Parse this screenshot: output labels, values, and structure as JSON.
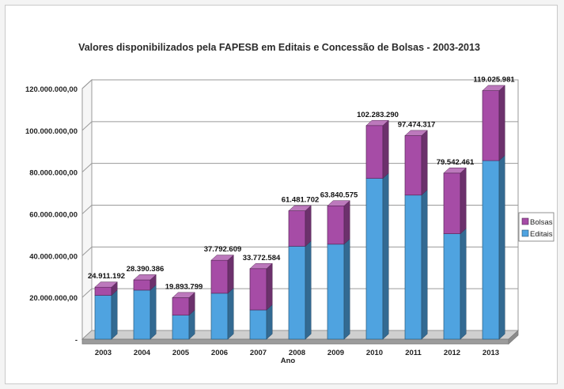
{
  "chart_data": {
    "type": "bar",
    "stacked": true,
    "view": "3d",
    "title": "Valores disponibilizados pela FAPESB em Editais e Concessão de Bolsas - 2003-2013",
    "xlabel": "Ano",
    "ylabel": "",
    "ylim": [
      0,
      120000000
    ],
    "yticks": [
      0,
      20000000,
      40000000,
      60000000,
      80000000,
      100000000,
      120000000
    ],
    "ytick_labels": [
      "-",
      "20.000.000,00",
      "40.000.000,00",
      "60.000.000,00",
      "80.000.000,00",
      "100.000.000,00",
      "120.000.000,00"
    ],
    "grid": true,
    "legend_position": "right",
    "categories": [
      "2003",
      "2004",
      "2005",
      "2006",
      "2007",
      "2008",
      "2009",
      "2010",
      "2011",
      "2012",
      "2013"
    ],
    "totals": [
      24911192,
      28390386,
      19893799,
      37792609,
      33772584,
      61481702,
      63840575,
      102283290,
      97474317,
      79542461,
      119025981
    ],
    "total_labels": [
      "24.911.192",
      "28.390.386",
      "19.893.799",
      "37.792.609",
      "33.772.584",
      "61.481.702",
      "63.840.575",
      "102.283.290",
      "97.474.317",
      "79.542.461",
      "119.025.981"
    ],
    "series": [
      {
        "name": "Editais",
        "color": "#4fa3e0",
        "values": [
          21000000,
          23500000,
          11500000,
          22000000,
          14000000,
          44500000,
          45500000,
          77000000,
          69000000,
          50500000,
          85500000
        ]
      },
      {
        "name": "Bolsas",
        "color": "#a64ca6",
        "values": [
          3911192,
          4890386,
          8393799,
          15792609,
          19772584,
          16981702,
          18340575,
          25283290,
          28474317,
          29042461,
          33525981
        ]
      }
    ],
    "legend": [
      "Bolsas",
      "Editais"
    ]
  },
  "colors": {
    "wall": "#ffffff",
    "floor": "#cfcfcf",
    "floor_side": "#9c9c9c",
    "grid": "#9a9a9a"
  }
}
